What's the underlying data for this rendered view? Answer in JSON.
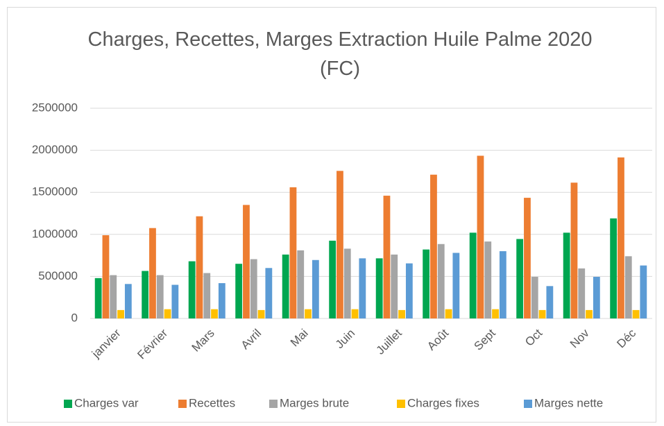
{
  "chart_data": {
    "type": "bar",
    "title": "Charges, Recettes, Marges Extraction Huile Palme 2020 (FC)",
    "categories": [
      "janvier",
      "Février",
      "Mars",
      "Avril",
      "Mai",
      "Juin",
      "Juillet",
      "Août",
      "Sept",
      "Oct",
      "Nov",
      "Déc"
    ],
    "series": [
      {
        "name": "Charges var",
        "color": "#00a650",
        "values": [
          480000,
          565000,
          680000,
          650000,
          760000,
          925000,
          715000,
          820000,
          1020000,
          945000,
          1020000,
          1190000
        ]
      },
      {
        "name": "Recettes",
        "color": "#ed7d31",
        "values": [
          990000,
          1075000,
          1215000,
          1350000,
          1560000,
          1755000,
          1460000,
          1710000,
          1935000,
          1435000,
          1615000,
          1915000
        ]
      },
      {
        "name": "Marges brute",
        "color": "#a5a5a5",
        "values": [
          515000,
          515000,
          540000,
          705000,
          810000,
          830000,
          760000,
          885000,
          915000,
          495000,
          595000,
          740000
        ]
      },
      {
        "name": "Charges fixes",
        "color": "#ffc000",
        "values": [
          100000,
          110000,
          110000,
          100000,
          110000,
          110000,
          100000,
          110000,
          110000,
          100000,
          100000,
          100000
        ]
      },
      {
        "name": "Marges nette",
        "color": "#5b9bd5",
        "values": [
          410000,
          400000,
          420000,
          600000,
          695000,
          715000,
          655000,
          780000,
          800000,
          385000,
          495000,
          630000
        ]
      }
    ],
    "ylim": [
      0,
      2500000
    ],
    "yticks": [
      0,
      500000,
      1000000,
      1500000,
      2000000,
      2500000
    ],
    "grid": true,
    "legend": "bottom"
  }
}
